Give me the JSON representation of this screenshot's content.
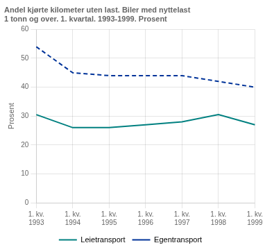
{
  "chart_data": {
    "type": "line",
    "title": [
      "Andel kjørte kilometer uten last. Biler med nyttelast",
      "1 tonn og over. 1. kvartal. 1993-1999. Prosent"
    ],
    "ylabel": "Prosent",
    "categories": [
      "1. kv.\n1993",
      "1. kv.\n1994",
      "1. kv.\n1995",
      "1. kv.\n1996",
      "1. kv.\n1997",
      "1. kv.\n1998",
      "1. kv.\n1999"
    ],
    "series": [
      {
        "name": "Leietransport",
        "color": "#008080",
        "line_style": "solid",
        "values": [
          30.5,
          26.0,
          26.0,
          27.0,
          28.0,
          30.5,
          27.0
        ]
      },
      {
        "name": "Egentransport",
        "color": "#003399",
        "line_style": "dashed",
        "values": [
          54.0,
          45.0,
          44.0,
          44.0,
          44.0,
          42.0,
          40.0
        ]
      }
    ],
    "ylim": [
      0,
      60
    ],
    "yticks": [
      0,
      10,
      20,
      30,
      40,
      50,
      60
    ],
    "grid": true,
    "legend": "bottom"
  }
}
